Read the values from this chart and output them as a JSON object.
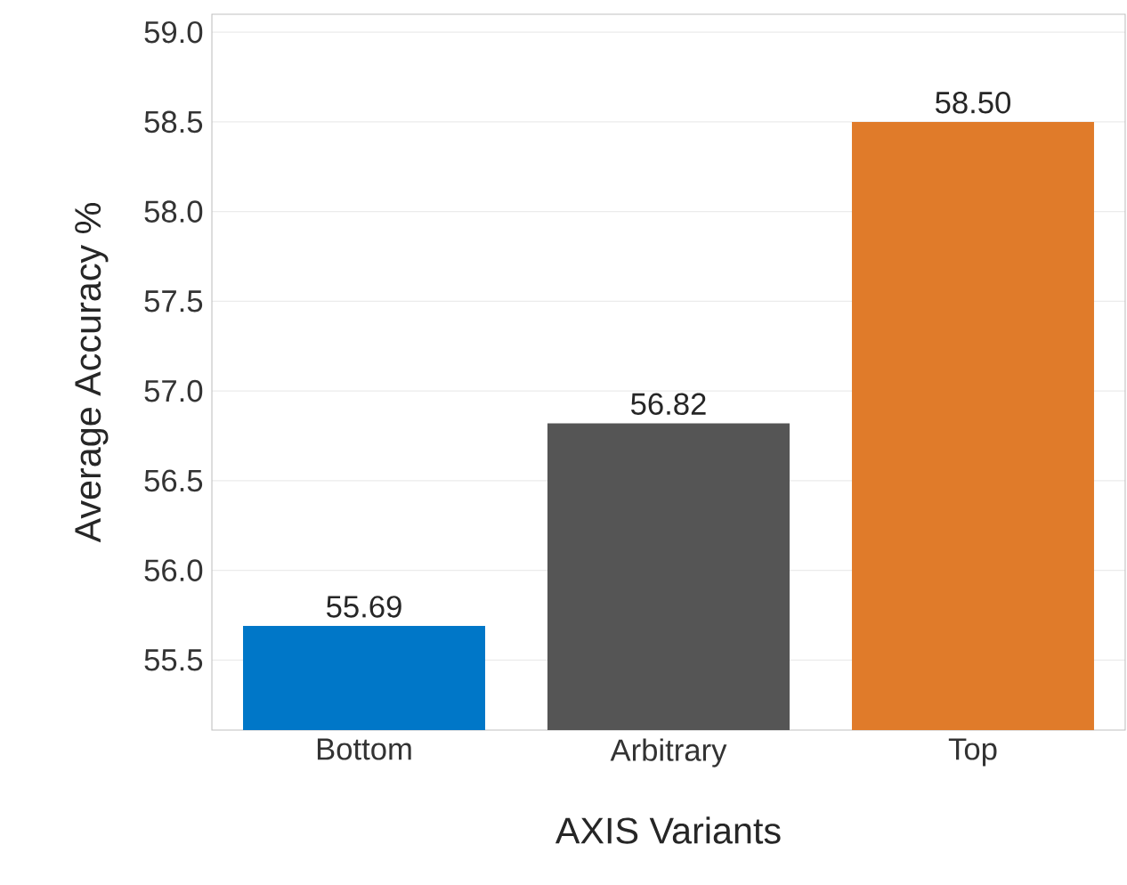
{
  "chart_data": {
    "type": "bar",
    "xlabel": "AXIS Variants",
    "ylabel": "Average Accuracy %",
    "categories": [
      "Bottom",
      "Arbitrary",
      "Top"
    ],
    "values": [
      55.69,
      56.82,
      58.5
    ],
    "colors": [
      "#0077c8",
      "#555555",
      "#e07b2a"
    ],
    "value_labels": [
      "55.69",
      "56.82",
      "58.50"
    ],
    "ylim": [
      55.11,
      59.1
    ],
    "yticks": [
      {
        "value": 55.5,
        "label": "55.5"
      },
      {
        "value": 56,
        "label": "56.0"
      },
      {
        "value": 56.5,
        "label": "56.5"
      },
      {
        "value": 57,
        "label": "57.0"
      },
      {
        "value": 57.5,
        "label": "57.5"
      },
      {
        "value": 58,
        "label": "58.0"
      },
      {
        "value": 58.5,
        "label": "58.5"
      },
      {
        "value": 59,
        "label": "59.0"
      }
    ],
    "grid": "y"
  }
}
